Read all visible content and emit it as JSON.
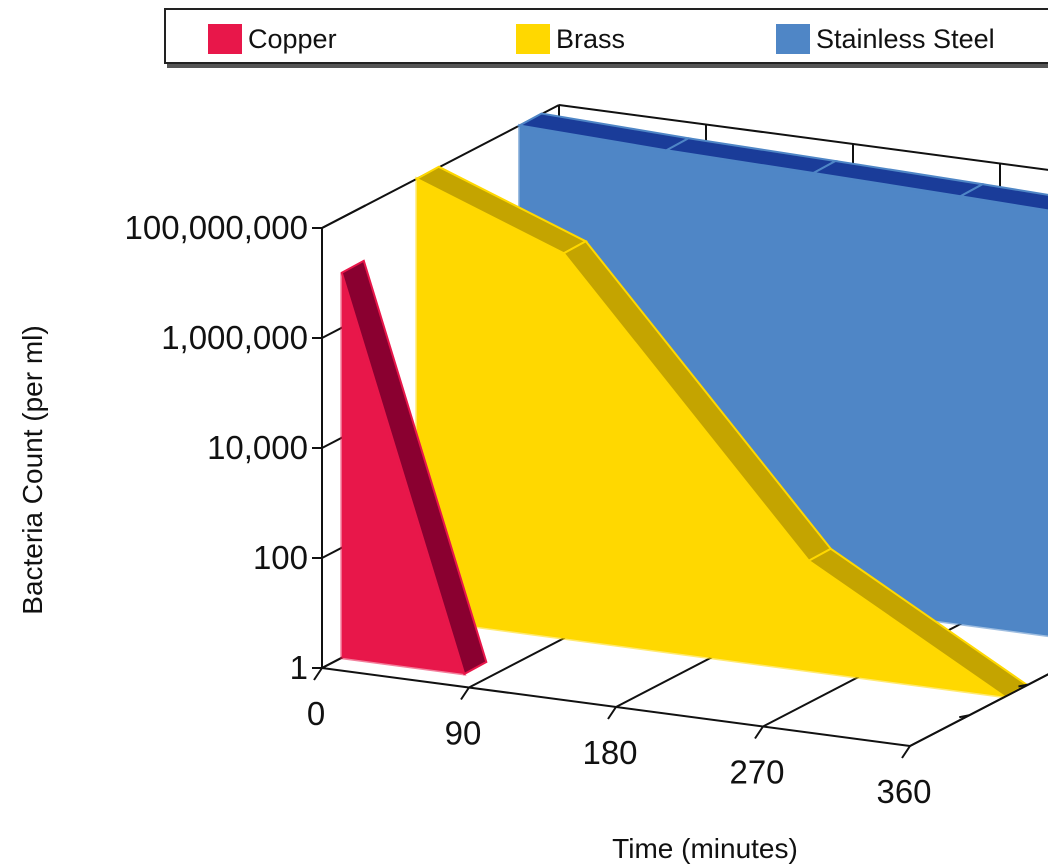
{
  "chart_data": {
    "type": "area",
    "title": "",
    "xlabel": "Time (minutes)",
    "ylabel": "Bacteria Count (per ml)",
    "x_ticks": [
      "0",
      "90",
      "180",
      "270",
      "360"
    ],
    "y_ticks": [
      "1",
      "100",
      "10,000",
      "1,000,000",
      "100,000,000"
    ],
    "y_scale": "log",
    "ylim": [
      1,
      100000000
    ],
    "xlim": [
      0,
      360
    ],
    "grid": true,
    "legend_position": "top",
    "series": [
      {
        "name": "Copper",
        "color": "#e8174a",
        "side_color": "#8a0030",
        "x": [
          0,
          75
        ],
        "values": [
          10000000,
          1
        ]
      },
      {
        "name": "Brass",
        "color": "#ffd800",
        "side_color": "#c4a400",
        "x": [
          0,
          90,
          240,
          360
        ],
        "values": [
          100000000,
          10000000,
          100,
          1
        ]
      },
      {
        "name": "Stainless Steel",
        "color": "#4f86c6",
        "side_color": "#1a3c99",
        "x": [
          0,
          90,
          180,
          270,
          360
        ],
        "values": [
          100000000,
          80000000,
          70000000,
          60000000,
          50000000
        ]
      }
    ]
  }
}
